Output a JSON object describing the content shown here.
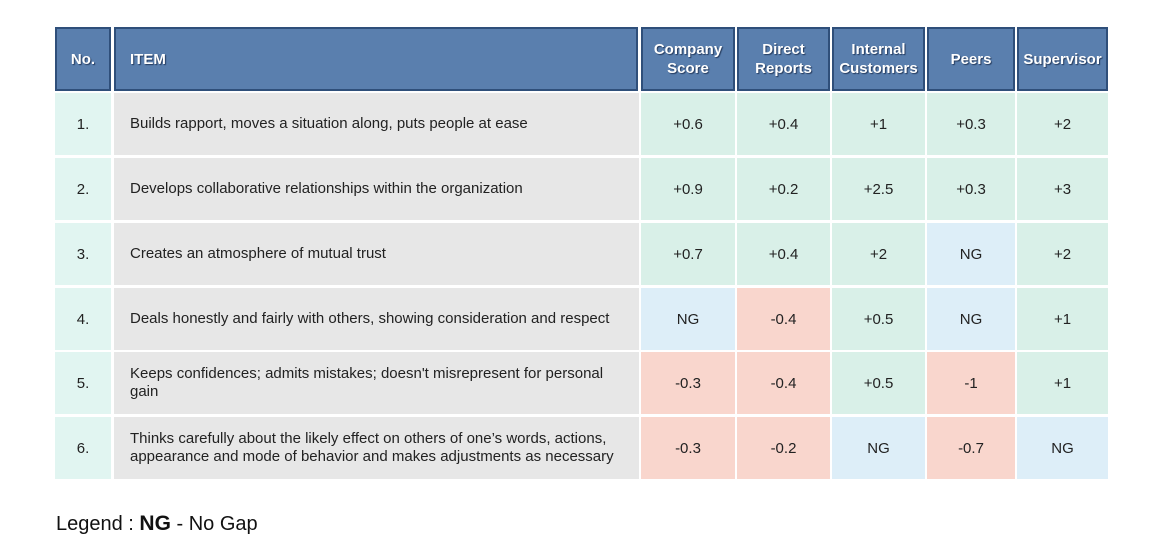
{
  "header": {
    "no": "No.",
    "item": "ITEM",
    "columns": [
      "Company Score",
      "Direct Reports",
      "Internal Customers",
      "Peers",
      "Supervisor"
    ]
  },
  "rows": [
    {
      "no": "1.",
      "item": "Builds rapport, moves a situation along, puts people at ease",
      "scores": [
        "+0.6",
        "+0.4",
        "+1",
        "+0.3",
        "+2"
      ],
      "status": [
        "positive",
        "positive",
        "positive",
        "positive",
        "positive"
      ]
    },
    {
      "no": "2.",
      "item": "Develops collaborative relationships within the organization",
      "scores": [
        "+0.9",
        "+0.2",
        "+2.5",
        "+0.3",
        "+3"
      ],
      "status": [
        "positive",
        "positive",
        "positive",
        "positive",
        "positive"
      ]
    },
    {
      "no": "3.",
      "item": "Creates an atmosphere of mutual trust",
      "scores": [
        "+0.7",
        "+0.4",
        "+2",
        "NG",
        "+2"
      ],
      "status": [
        "positive",
        "positive",
        "positive",
        "nogap",
        "positive"
      ]
    },
    {
      "no": "4.",
      "item": "Deals honestly and fairly with others, showing consideration and respect",
      "scores": [
        "NG",
        "-0.4",
        "+0.5",
        "NG",
        "+1"
      ],
      "status": [
        "nogap",
        "negative",
        "positive",
        "nogap",
        "positive"
      ]
    },
    {
      "no": "5.",
      "item": "Keeps confidences; admits mistakes; doesn't misrepresent for personal gain",
      "scores": [
        "-0.3",
        "-0.4",
        "+0.5",
        "-1",
        "+1"
      ],
      "status": [
        "negative",
        "negative",
        "positive",
        "negative",
        "positive"
      ]
    },
    {
      "no": "6.",
      "item": "Thinks carefully about the likely effect on others of one’s words, actions, appearance and mode of behavior and makes adjustments as necessary",
      "scores": [
        "-0.3",
        "-0.2",
        "NG",
        "-0.7",
        "NG"
      ],
      "status": [
        "negative",
        "negative",
        "nogap",
        "negative",
        "nogap"
      ]
    }
  ],
  "colors": {
    "positive": "#d9f0e8",
    "negative": "#f9d6cd",
    "nogap": "#ddeef8",
    "header": "#5a7fae"
  },
  "legend": {
    "prefix": "Legend : ",
    "code": "NG",
    "meaning": " - No Gap"
  }
}
